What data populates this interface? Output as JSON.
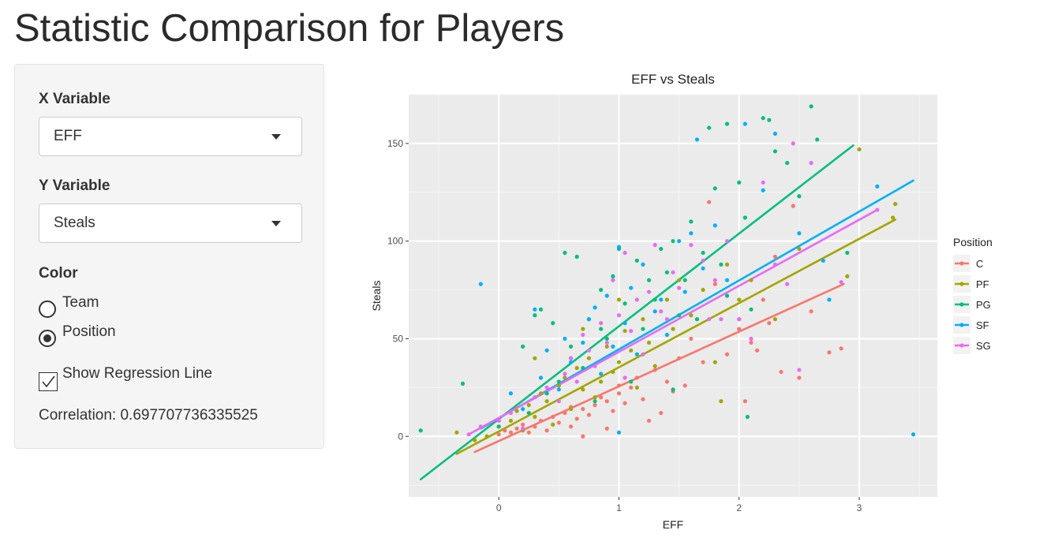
{
  "page": {
    "title": "Statistic Comparison for Players"
  },
  "sidebar": {
    "x_variable": {
      "label": "X Variable",
      "selected": "EFF"
    },
    "y_variable": {
      "label": "Y Variable",
      "selected": "Steals"
    },
    "color": {
      "label": "Color",
      "options": [
        {
          "label": "Team",
          "checked": false
        },
        {
          "label": "Position",
          "checked": true
        }
      ]
    },
    "regression": {
      "label": "Show Regression Line",
      "checked": true
    },
    "correlation": "Correlation: 0.697707736335525"
  },
  "chart_data": {
    "type": "scatter",
    "title": "EFF vs Steals",
    "xlabel": "EFF",
    "ylabel": "Steals",
    "xlim": [
      -0.75,
      3.65
    ],
    "ylim": [
      -31,
      175
    ],
    "xticks": [
      0,
      1,
      2,
      3
    ],
    "yticks": [
      0,
      50,
      100,
      150
    ],
    "grid": true,
    "legend": {
      "title": "Position",
      "placement": "right"
    },
    "series": [
      {
        "name": "C",
        "color": "#F8766D",
        "regression": {
          "x": [
            -0.2,
            2.87
          ],
          "y": [
            -8,
            78
          ]
        },
        "points": [
          [
            0.0,
            1
          ],
          [
            0.05,
            3
          ],
          [
            0.1,
            2
          ],
          [
            0.15,
            4
          ],
          [
            0.2,
            6
          ],
          [
            0.25,
            2
          ],
          [
            0.3,
            5
          ],
          [
            0.35,
            8
          ],
          [
            0.4,
            3
          ],
          [
            0.45,
            10
          ],
          [
            0.5,
            7
          ],
          [
            0.55,
            12
          ],
          [
            0.6,
            5
          ],
          [
            0.65,
            9
          ],
          [
            0.7,
            14
          ],
          [
            0.75,
            11
          ],
          [
            0.8,
            16
          ],
          [
            0.85,
            20
          ],
          [
            0.9,
            18
          ],
          [
            0.95,
            13
          ],
          [
            1.0,
            22
          ],
          [
            1.05,
            17
          ],
          [
            1.1,
            25
          ],
          [
            1.15,
            30
          ],
          [
            1.2,
            19
          ],
          [
            1.3,
            34
          ],
          [
            1.35,
            12
          ],
          [
            1.4,
            28
          ],
          [
            1.45,
            23
          ],
          [
            1.5,
            40
          ],
          [
            1.55,
            26
          ],
          [
            1.6,
            50
          ],
          [
            1.65,
            60
          ],
          [
            1.8,
            78
          ],
          [
            1.9,
            42
          ],
          [
            2.0,
            55
          ],
          [
            2.05,
            18
          ],
          [
            2.1,
            48
          ],
          [
            2.2,
            70
          ],
          [
            2.25,
            58
          ],
          [
            2.3,
            92
          ],
          [
            2.35,
            33
          ],
          [
            2.45,
            118
          ],
          [
            2.5,
            30
          ],
          [
            2.6,
            64
          ],
          [
            2.75,
            43
          ],
          [
            2.85,
            45
          ],
          [
            0.9,
            4
          ],
          [
            1.0,
            26
          ],
          [
            0.6,
            15
          ],
          [
            0.7,
            0
          ],
          [
            1.25,
            8
          ],
          [
            1.7,
            38
          ],
          [
            1.75,
            120
          ],
          [
            2.15,
            44
          ]
        ]
      },
      {
        "name": "PF",
        "color": "#A3A500",
        "regression": {
          "x": [
            -0.35,
            3.3
          ],
          "y": [
            -9,
            111
          ]
        },
        "points": [
          [
            -0.35,
            2
          ],
          [
            -0.2,
            -2
          ],
          [
            -0.1,
            0
          ],
          [
            0.0,
            5
          ],
          [
            0.1,
            8
          ],
          [
            0.15,
            13
          ],
          [
            0.2,
            3
          ],
          [
            0.25,
            16
          ],
          [
            0.3,
            10
          ],
          [
            0.35,
            22
          ],
          [
            0.4,
            18
          ],
          [
            0.45,
            6
          ],
          [
            0.5,
            26
          ],
          [
            0.55,
            30
          ],
          [
            0.6,
            14
          ],
          [
            0.65,
            35
          ],
          [
            0.7,
            24
          ],
          [
            0.75,
            40
          ],
          [
            0.8,
            20
          ],
          [
            0.85,
            28
          ],
          [
            0.9,
            46
          ],
          [
            0.95,
            33
          ],
          [
            1.0,
            38
          ],
          [
            1.05,
            54
          ],
          [
            1.1,
            44
          ],
          [
            1.15,
            25
          ],
          [
            1.2,
            60
          ],
          [
            1.25,
            48
          ],
          [
            1.3,
            36
          ],
          [
            1.4,
            70
          ],
          [
            1.45,
            55
          ],
          [
            1.5,
            80
          ],
          [
            1.6,
            62
          ],
          [
            1.7,
            75
          ],
          [
            1.8,
            38
          ],
          [
            1.9,
            88
          ],
          [
            2.0,
            70
          ],
          [
            2.05,
            112
          ],
          [
            2.1,
            80
          ],
          [
            2.3,
            60
          ],
          [
            2.5,
            96
          ],
          [
            2.9,
            82
          ],
          [
            3.0,
            147
          ],
          [
            3.3,
            119
          ],
          [
            3.28,
            112
          ],
          [
            0.3,
            40
          ],
          [
            0.7,
            55
          ],
          [
            1.0,
            70
          ],
          [
            1.85,
            18
          ]
        ]
      },
      {
        "name": "PG",
        "color": "#00BF7D",
        "regression": {
          "x": [
            -0.65,
            2.95
          ],
          "y": [
            -22,
            149
          ]
        },
        "points": [
          [
            -0.65,
            3
          ],
          [
            -0.3,
            27
          ],
          [
            0.0,
            5
          ],
          [
            0.2,
            46
          ],
          [
            0.25,
            12
          ],
          [
            0.3,
            62
          ],
          [
            0.35,
            65
          ],
          [
            0.4,
            22
          ],
          [
            0.45,
            58
          ],
          [
            0.5,
            28
          ],
          [
            0.55,
            94
          ],
          [
            0.6,
            46
          ],
          [
            0.65,
            92
          ],
          [
            0.7,
            35
          ],
          [
            0.75,
            60
          ],
          [
            0.8,
            18
          ],
          [
            0.85,
            75
          ],
          [
            0.9,
            50
          ],
          [
            0.95,
            82
          ],
          [
            1.0,
            96
          ],
          [
            1.05,
            68
          ],
          [
            1.1,
            28
          ],
          [
            1.15,
            90
          ],
          [
            1.2,
            55
          ],
          [
            1.25,
            80
          ],
          [
            1.3,
            70
          ],
          [
            1.35,
            96
          ],
          [
            1.4,
            84
          ],
          [
            1.45,
            24
          ],
          [
            1.5,
            62
          ],
          [
            1.55,
            80
          ],
          [
            1.6,
            110
          ],
          [
            1.65,
            60
          ],
          [
            1.7,
            94
          ],
          [
            1.75,
            158
          ],
          [
            1.8,
            127
          ],
          [
            1.85,
            88
          ],
          [
            1.9,
            72
          ],
          [
            2.0,
            130
          ],
          [
            2.05,
            112
          ],
          [
            2.1,
            65
          ],
          [
            2.2,
            163
          ],
          [
            2.25,
            162
          ],
          [
            2.3,
            146
          ],
          [
            2.4,
            140
          ],
          [
            2.5,
            123
          ],
          [
            2.6,
            169
          ],
          [
            2.65,
            152
          ],
          [
            2.9,
            94
          ],
          [
            2.07,
            10
          ],
          [
            1.9,
            160
          ],
          [
            1.45,
            100
          ],
          [
            0.6,
            40
          ],
          [
            0.85,
            55
          ]
        ]
      },
      {
        "name": "SF",
        "color": "#00B0F6",
        "regression": {
          "x": [
            -0.15,
            3.45
          ],
          "y": [
            4,
            131
          ]
        },
        "points": [
          [
            -0.15,
            78
          ],
          [
            0.0,
            8
          ],
          [
            0.1,
            22
          ],
          [
            0.2,
            14
          ],
          [
            0.3,
            65
          ],
          [
            0.35,
            30
          ],
          [
            0.4,
            44
          ],
          [
            0.5,
            24
          ],
          [
            0.55,
            50
          ],
          [
            0.6,
            38
          ],
          [
            0.7,
            48
          ],
          [
            0.75,
            60
          ],
          [
            0.8,
            66
          ],
          [
            0.85,
            32
          ],
          [
            0.9,
            72
          ],
          [
            0.95,
            46
          ],
          [
            1.0,
            97
          ],
          [
            1.05,
            58
          ],
          [
            1.1,
            76
          ],
          [
            1.15,
            42
          ],
          [
            1.2,
            88
          ],
          [
            1.3,
            64
          ],
          [
            1.35,
            70
          ],
          [
            1.4,
            52
          ],
          [
            1.5,
            100
          ],
          [
            1.55,
            74
          ],
          [
            1.6,
            104
          ],
          [
            1.65,
            152
          ],
          [
            1.7,
            86
          ],
          [
            1.8,
            108
          ],
          [
            1.9,
            80
          ],
          [
            2.0,
            60
          ],
          [
            2.05,
            160
          ],
          [
            2.2,
            126
          ],
          [
            2.3,
            155
          ],
          [
            2.5,
            104
          ],
          [
            2.7,
            90
          ],
          [
            2.75,
            70
          ],
          [
            3.15,
            128
          ],
          [
            3.45,
            1
          ],
          [
            1.0,
            2
          ]
        ]
      },
      {
        "name": "SG",
        "color": "#E76BF3",
        "regression": {
          "x": [
            -0.25,
            3.15
          ],
          "y": [
            1,
            116
          ]
        },
        "points": [
          [
            -0.25,
            1
          ],
          [
            -0.15,
            5
          ],
          [
            0.0,
            8
          ],
          [
            0.1,
            12
          ],
          [
            0.2,
            4
          ],
          [
            0.3,
            20
          ],
          [
            0.4,
            25
          ],
          [
            0.5,
            18
          ],
          [
            0.55,
            32
          ],
          [
            0.6,
            40
          ],
          [
            0.65,
            28
          ],
          [
            0.7,
            52
          ],
          [
            0.75,
            44
          ],
          [
            0.8,
            36
          ],
          [
            0.85,
            58
          ],
          [
            0.9,
            48
          ],
          [
            0.95,
            80
          ],
          [
            1.0,
            62
          ],
          [
            1.05,
            94
          ],
          [
            1.1,
            54
          ],
          [
            1.15,
            70
          ],
          [
            1.2,
            42
          ],
          [
            1.25,
            74
          ],
          [
            1.3,
            98
          ],
          [
            1.35,
            64
          ],
          [
            1.4,
            60
          ],
          [
            1.45,
            84
          ],
          [
            1.5,
            76
          ],
          [
            1.6,
            98
          ],
          [
            1.7,
            90
          ],
          [
            1.75,
            60
          ],
          [
            1.8,
            80
          ],
          [
            1.85,
            60
          ],
          [
            1.9,
            100
          ],
          [
            2.0,
            60
          ],
          [
            2.1,
            50
          ],
          [
            2.2,
            130
          ],
          [
            2.3,
            88
          ],
          [
            2.4,
            78
          ],
          [
            2.45,
            150
          ],
          [
            2.5,
            34
          ],
          [
            2.6,
            140
          ],
          [
            2.85,
            79
          ],
          [
            3.15,
            116
          ],
          [
            1.05,
            30
          ]
        ]
      }
    ]
  }
}
